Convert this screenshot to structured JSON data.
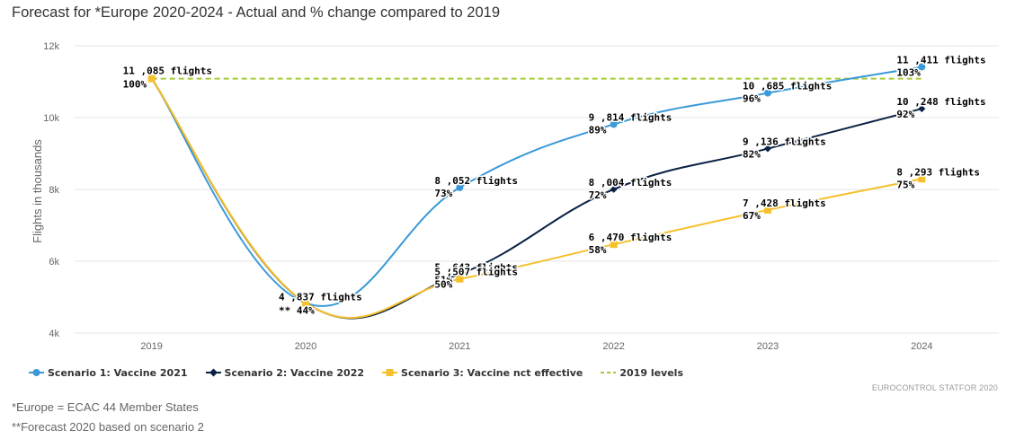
{
  "chart_data": {
    "type": "line",
    "title": "Forecast for *Europe 2020-2024 - Actual and % change compared to 2019",
    "ylabel": "Flights in thousands",
    "xlabel": "",
    "categories": [
      "2019",
      "2020",
      "2021",
      "2022",
      "2023",
      "2024"
    ],
    "ylim": [
      4,
      12
    ],
    "y_ticks": [
      "4k",
      "6k",
      "8k",
      "10k",
      "12k"
    ],
    "grid": true,
    "legend_position": "bottom-left",
    "series": [
      {
        "name": "Scenario 1: Vaccine 2021",
        "color": "#3a99d8",
        "marker": "circle",
        "values": [
          11.085,
          4.837,
          8.052,
          9.814,
          10.685,
          11.411
        ],
        "flight_labels": [
          "",
          "",
          "8 ,052 flights",
          "9 ,814 flights",
          "10 ,685 flights",
          "11 ,411 flights"
        ],
        "pct_labels": [
          "",
          "",
          "73%",
          "89%",
          "96%",
          "103%"
        ]
      },
      {
        "name": "Scenario 2: Vaccine 2022",
        "color": "#0a2244",
        "marker": "diamond",
        "values": [
          11.085,
          4.837,
          5.643,
          8.004,
          9.136,
          10.248
        ],
        "flight_labels": [
          "",
          "",
          "5 ,643 flights",
          "8 ,004 flights",
          "9 ,136 flights",
          "10 ,248 flights"
        ],
        "pct_labels": [
          "",
          "",
          "51%",
          "72%",
          "82%",
          "92%"
        ]
      },
      {
        "name": "Scenario 3: Vaccine nct effective",
        "color": "#f5c02c",
        "marker": "square",
        "values": [
          11.085,
          4.837,
          5.507,
          6.47,
          7.428,
          8.293
        ],
        "flight_labels": [
          "11 ,085 flights",
          "4 ,837 flights",
          "5 ,507 flights",
          "6 ,470 flights",
          "7 ,428 flights",
          "8 ,293 flights"
        ],
        "pct_labels": [
          "100%",
          "** 44%",
          "50%",
          "58%",
          "67%",
          "75%"
        ]
      },
      {
        "name": "2019 levels",
        "color": "#a6c935",
        "style": "dashed",
        "values": [
          11.085,
          11.085,
          11.085,
          11.085,
          11.085,
          11.085
        ]
      }
    ]
  },
  "credit": "EUROCONTROL STATFOR 2020",
  "footnotes": [
    "*Europe = ECAC 44 Member States",
    "**Forecast 2020 based on scenario 2"
  ]
}
